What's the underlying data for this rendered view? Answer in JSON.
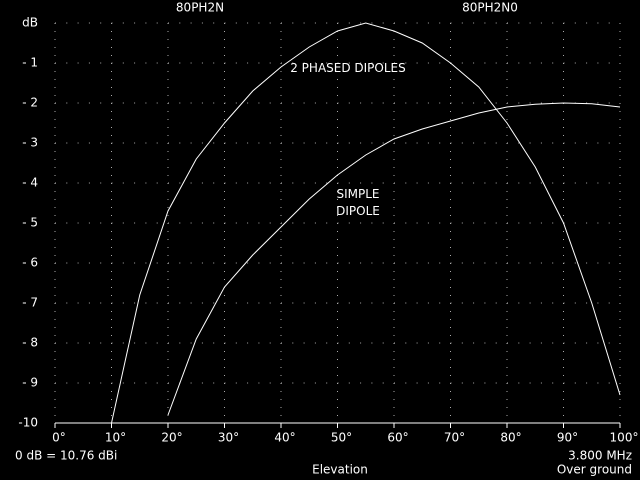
{
  "chart_data": {
    "type": "line",
    "titles": [
      "80PH2N",
      "80PH2N0"
    ],
    "x_label": "Elevation",
    "notes": [
      "0 dB = 10.76 dBi",
      "3.800 MHz",
      "Over ground"
    ],
    "x": [
      10,
      15,
      20,
      25,
      30,
      35,
      40,
      45,
      50,
      55,
      60,
      65,
      70,
      75,
      80,
      85,
      90,
      95,
      100
    ],
    "series": [
      {
        "name": "2 PHASED DIPOLES",
        "color": "#ffffff",
        "values": [
          -10,
          -6.8,
          -4.7,
          -3.4,
          -2.5,
          -1.7,
          -1.1,
          -0.6,
          -0.2,
          0,
          -0.2,
          -0.5,
          -1.0,
          -1.6,
          -2.5,
          -3.6,
          -5.0,
          -7.0,
          -9.3
        ]
      },
      {
        "name": "SIMPLE DIPOLE",
        "color": "#ffffff",
        "values": [
          null,
          null,
          -9.8,
          -7.9,
          -6.6,
          -5.8,
          -5.1,
          -4.4,
          -3.8,
          -3.3,
          -2.9,
          -2.65,
          -2.45,
          -2.25,
          -2.1,
          -2.03,
          -2.0,
          -2.02,
          -2.1
        ]
      }
    ],
    "xlim": [
      0,
      100
    ],
    "xticks": [
      {
        "value": 0,
        "label": "0°"
      },
      {
        "value": 10,
        "label": "10°"
      },
      {
        "value": 20,
        "label": "20°"
      },
      {
        "value": 30,
        "label": "30°"
      },
      {
        "value": 40,
        "label": "40°"
      },
      {
        "value": 50,
        "label": "50°"
      },
      {
        "value": 60,
        "label": "60°"
      },
      {
        "value": 70,
        "label": "70°"
      },
      {
        "value": 80,
        "label": "80°"
      },
      {
        "value": 90,
        "label": "90°"
      },
      {
        "value": 100,
        "label": "100°"
      }
    ],
    "ylim": [
      -10,
      0
    ],
    "yticks": [
      {
        "value": 0,
        "label": "dB"
      },
      {
        "value": -1,
        "label": "- 1"
      },
      {
        "value": -2,
        "label": "- 2"
      },
      {
        "value": -3,
        "label": "- 3"
      },
      {
        "value": -4,
        "label": "- 4"
      },
      {
        "value": -5,
        "label": "- 5"
      },
      {
        "value": -6,
        "label": "- 6"
      },
      {
        "value": -7,
        "label": "- 7"
      },
      {
        "value": -8,
        "label": "- 8"
      },
      {
        "value": -9,
        "label": "- 9"
      },
      {
        "value": -10,
        "label": "-10"
      }
    ],
    "grid": true
  }
}
